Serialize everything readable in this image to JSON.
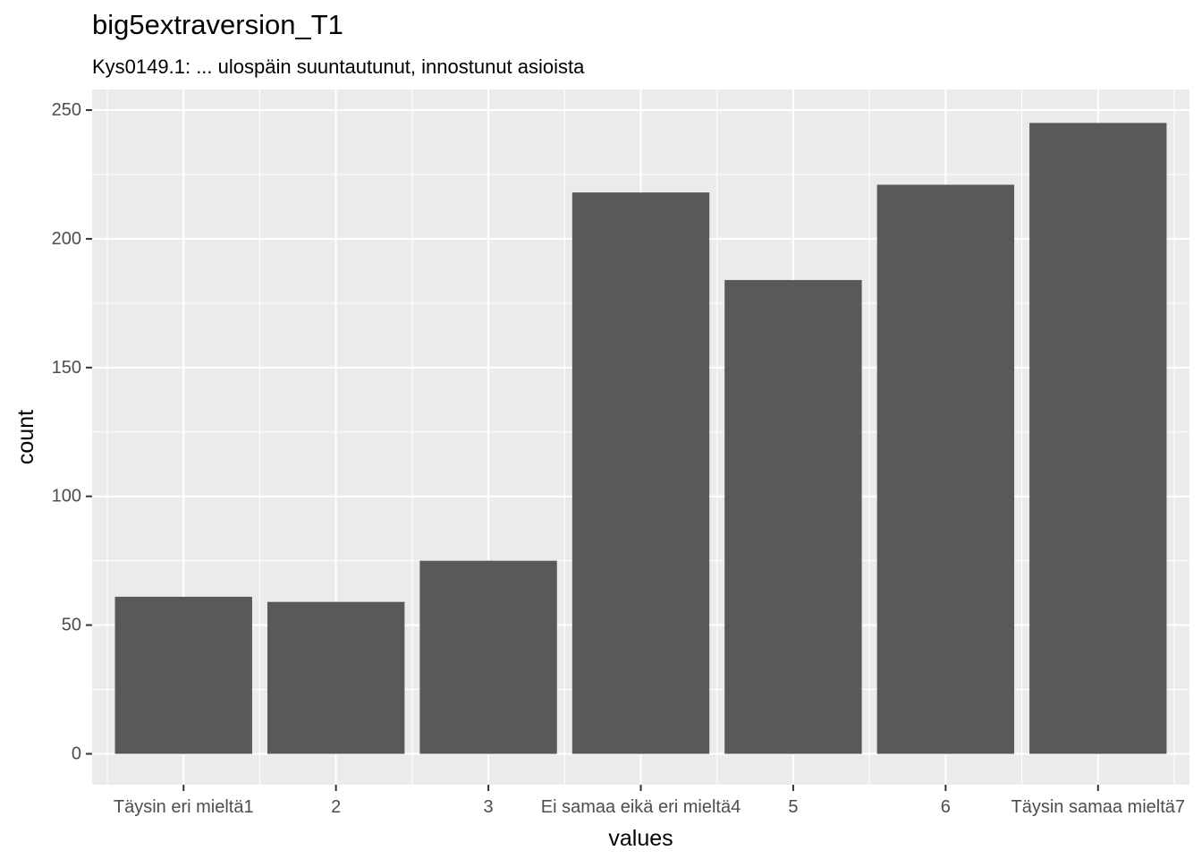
{
  "chart_data": {
    "type": "bar",
    "title": "big5extraversion_T1",
    "subtitle": "Kys0149.1: ... ulospäin suuntautunut, innostunut asioista",
    "xlabel": "values",
    "ylabel": "count",
    "categories": [
      "Täysin eri mieltä1",
      "2",
      "3",
      "Ei samaa eikä eri mieltä4",
      "5",
      "6",
      "Täysin samaa mieltä7"
    ],
    "values": [
      61,
      59,
      75,
      218,
      184,
      221,
      245
    ],
    "ylim": [
      -12,
      258
    ],
    "yticks": [
      0,
      50,
      100,
      150,
      200,
      250
    ],
    "grid": true,
    "colors": {
      "panel": "#ebebeb",
      "grid": "#ffffff",
      "bar": "#595959",
      "tick_text": "#4d4d4d",
      "tick_mark": "#333333"
    }
  }
}
